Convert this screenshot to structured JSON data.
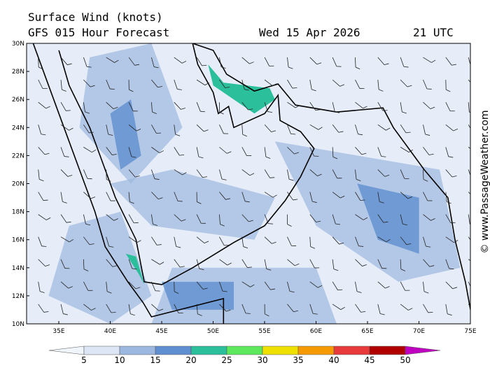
{
  "header": {
    "title": "Surface Wind (knots)",
    "subtitle": "GFS 015 Hour Forecast",
    "date": "Wed 15 Apr 2026",
    "time": "21 UTC"
  },
  "map": {
    "lat_labels": [
      "30N",
      "28N",
      "26N",
      "24N",
      "22N",
      "20N",
      "18N",
      "16N",
      "14N",
      "12N",
      "10N"
    ],
    "lon_labels": [
      "35E",
      "40E",
      "45E",
      "50E",
      "55E",
      "60E",
      "65E",
      "70E",
      "75E"
    ]
  },
  "colorbar": {
    "labels": [
      5,
      10,
      15,
      20,
      25,
      30,
      35,
      40,
      45,
      50
    ]
  },
  "watermark": "© www.PassageWeather.com"
}
